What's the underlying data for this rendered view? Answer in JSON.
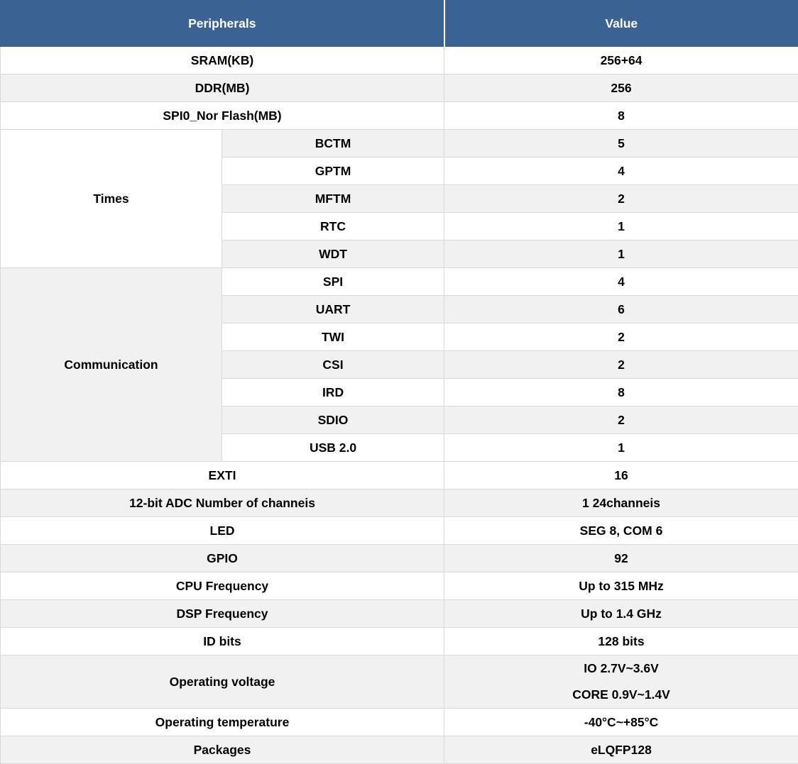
{
  "colors": {
    "header_bg": "#3A6293",
    "header_text": "#ffffff",
    "stripe": "#f1f1f1",
    "row_white": "#ffffff",
    "border": "#d9d9d9",
    "text": "#000000"
  },
  "table": {
    "header": {
      "peripherals": "Peripherals",
      "value": "Value"
    },
    "memory_rows": [
      {
        "label": "SRAM(KB)",
        "value": "256+64"
      },
      {
        "label": "DDR(MB)",
        "value": "256"
      },
      {
        "label": "SPI0_Nor Flash(MB)",
        "value": "8"
      }
    ],
    "times_group": {
      "label": "Times",
      "items": [
        {
          "label": "BCTM",
          "value": "5"
        },
        {
          "label": "GPTM",
          "value": "4"
        },
        {
          "label": "MFTM",
          "value": "2"
        },
        {
          "label": "RTC",
          "value": "1"
        },
        {
          "label": "WDT",
          "value": "1"
        }
      ]
    },
    "communication_group": {
      "label": "Communication",
      "items": [
        {
          "label": "SPI",
          "value": "4"
        },
        {
          "label": "UART",
          "value": "6"
        },
        {
          "label": "TWI",
          "value": "2"
        },
        {
          "label": "CSI",
          "value": "2"
        },
        {
          "label": "IRD",
          "value": "8"
        },
        {
          "label": "SDIO",
          "value": "2"
        },
        {
          "label": "USB 2.0",
          "value": "1"
        }
      ]
    },
    "other_rows": [
      {
        "label": "EXTI",
        "value": "16"
      },
      {
        "label": "12-bit ADC Number of channeis",
        "value": "1 24channeis"
      },
      {
        "label": "LED",
        "value": "SEG 8, COM 6"
      },
      {
        "label": "GPIO",
        "value": "92"
      },
      {
        "label": "CPU Frequency",
        "value": "Up to 315 MHz"
      },
      {
        "label": "DSP Frequency",
        "value": "Up to 1.4 GHz"
      },
      {
        "label": "ID bits",
        "value": "128 bits"
      }
    ],
    "operating_voltage": {
      "label": "Operating voltage",
      "value_lines": [
        "IO 2.7V~3.6V",
        "CORE 0.9V~1.4V"
      ]
    },
    "final_rows": [
      {
        "label": "Operating temperature",
        "value": "-40°C~+85°C"
      },
      {
        "label": "Packages",
        "value": "eLQFP128"
      }
    ]
  }
}
